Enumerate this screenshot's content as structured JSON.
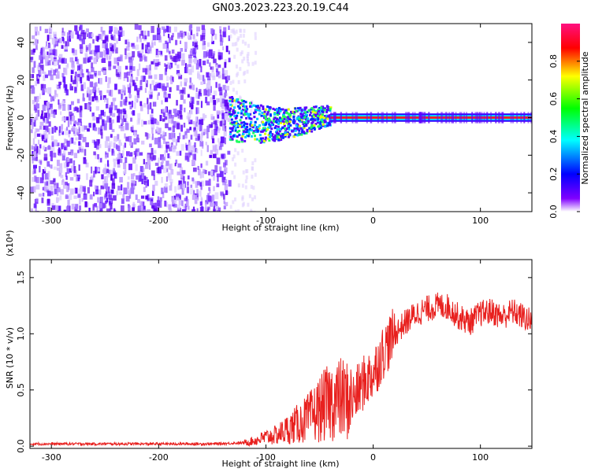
{
  "title": "GN03.2023.223.20.19.C44",
  "chart_data": [
    {
      "type": "heatmap",
      "xlabel": "Height of straight line (km)",
      "ylabel": "Frequency (Hz)",
      "xlim": [
        -320,
        148
      ],
      "ylim": [
        -50,
        50
      ],
      "x_ticks": [
        -300,
        -200,
        -100,
        0,
        100
      ],
      "y_ticks": [
        -40,
        -20,
        0,
        20,
        40
      ],
      "colorbar": {
        "label": "Normalized spectral amplitude",
        "range": [
          0,
          1
        ],
        "ticks": [
          "0.0",
          "0.2",
          "0.4",
          "0.6",
          "0.8"
        ],
        "colors": [
          "#ffffff",
          "#8000ff",
          "#0000ff",
          "#00ffff",
          "#00ff00",
          "#ffff00",
          "#ff0000",
          "#ff0080"
        ]
      },
      "regions": [
        {
          "x": [
            -320,
            -135
          ],
          "freq": [
            -50,
            50
          ],
          "amplitude": 0.1,
          "kind": "noise"
        },
        {
          "x": [
            -135,
            -40
          ],
          "freq": [
            -12,
            12
          ],
          "amplitude": 0.35,
          "kind": "scattered band"
        },
        {
          "x": [
            -40,
            148
          ],
          "freq": [
            -2,
            2
          ],
          "amplitude": 0.9,
          "kind": "narrow line at 0 Hz"
        }
      ]
    },
    {
      "type": "line",
      "xlabel": "Height of straight line (km)",
      "ylabel": "SNR (10 * v/v)",
      "y_multiplier": "(x10⁴)",
      "xlim": [
        -320,
        148
      ],
      "ylim": [
        -0.02,
        1.66
      ],
      "x_ticks": [
        -300,
        -200,
        -100,
        0,
        100
      ],
      "y_ticks": [
        "0.0",
        "0.5",
        "1.0",
        "1.5"
      ],
      "series": [
        {
          "color": "#e8201e",
          "x": [
            -320,
            -250,
            -200,
            -150,
            -120,
            -110,
            -100,
            -90,
            -80,
            -70,
            -60,
            -50,
            -40,
            -30,
            -20,
            -10,
            0,
            10,
            20,
            30,
            40,
            50,
            60,
            70,
            80,
            90,
            100,
            110,
            120,
            130,
            140,
            148
          ],
          "y": [
            0.02,
            0.02,
            0.02,
            0.02,
            0.03,
            0.05,
            0.08,
            0.1,
            0.15,
            0.2,
            0.25,
            0.33,
            0.4,
            0.42,
            0.4,
            0.55,
            0.65,
            0.85,
            1.0,
            1.1,
            1.18,
            1.22,
            1.25,
            1.24,
            1.15,
            1.1,
            1.18,
            1.2,
            1.15,
            1.2,
            1.15,
            1.1
          ]
        }
      ]
    }
  ]
}
